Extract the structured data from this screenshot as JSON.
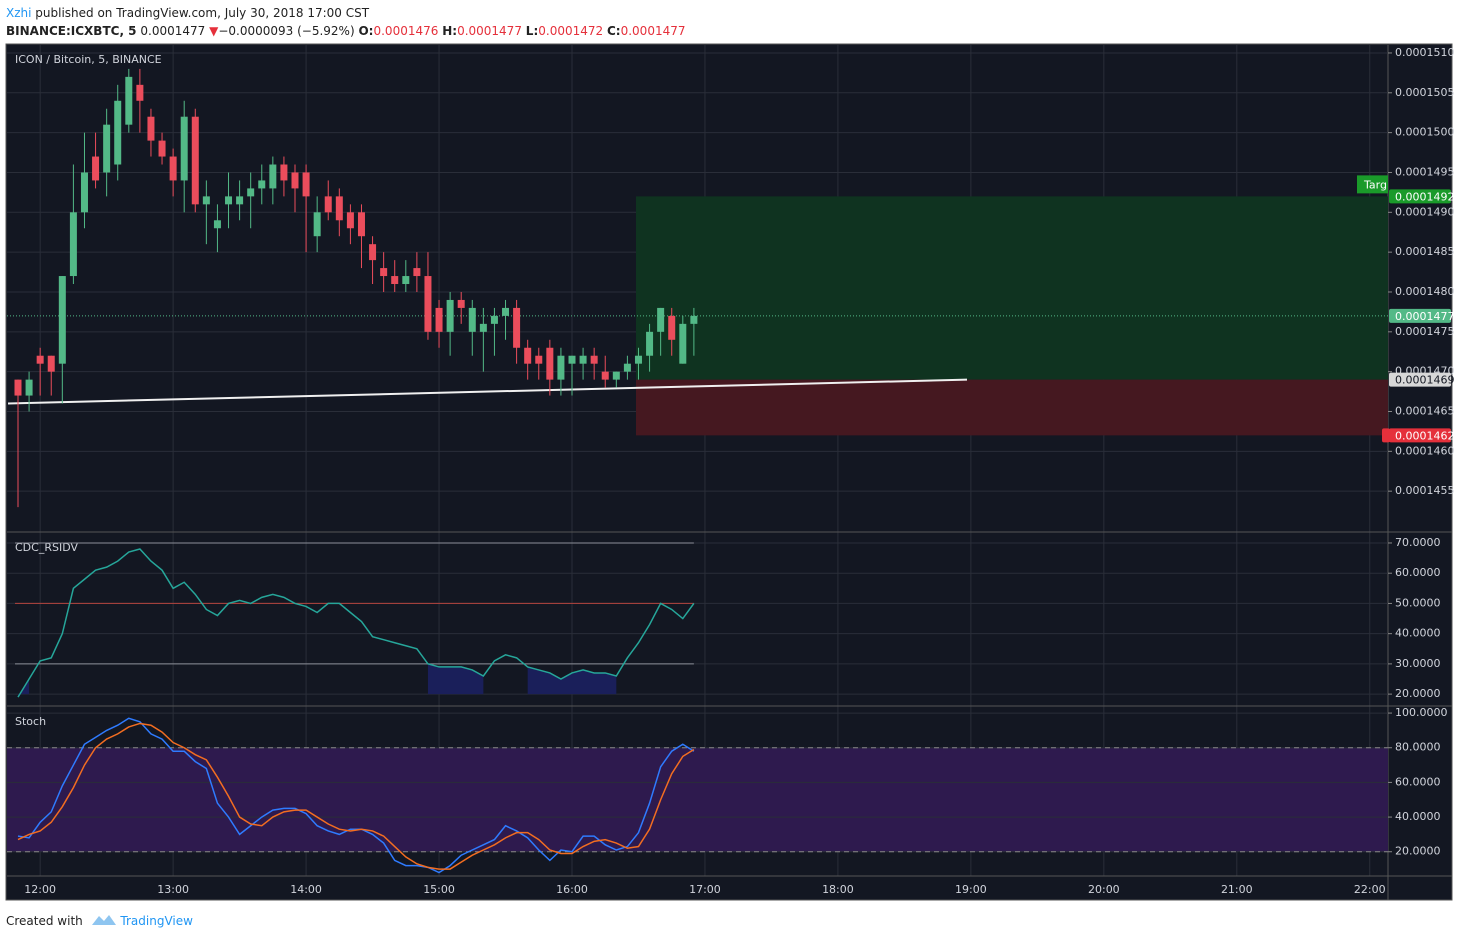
{
  "header": {
    "user": "Xzhi",
    "published": " published on TradingView.com, July 30, 2018 17:00 CST",
    "symbol": "BINANCE:ICXBTC, 5",
    "price": "0.0001477",
    "arrow": "▼",
    "change": "−0.0000093 (−5.92%)",
    "ohlc": [
      {
        "label": "O:",
        "value": "0.0001476"
      },
      {
        "label": "H:",
        "value": "0.0001477"
      },
      {
        "label": "L:",
        "value": "0.0001472"
      },
      {
        "label": "C:",
        "value": "0.0001477"
      }
    ]
  },
  "footer": {
    "created": "Created with",
    "brand": "TradingView"
  },
  "xticks": [
    "12:00",
    "13:00",
    "14:00",
    "15:00",
    "16:00",
    "17:00",
    "18:00",
    "19:00",
    "20:00",
    "21:00",
    "22:00"
  ],
  "chart_data": [
    {
      "type": "candlestick",
      "title": "ICON / Bitcoin, 5, BINANCE",
      "up_color": "#53b987",
      "down_color": "#eb4d5c",
      "grid": true,
      "open": [
        0.0001469,
        0.0001467,
        0.0001472,
        0.0001472,
        0.0001471,
        0.0001482,
        0.000149,
        0.0001497,
        0.0001495,
        0.0001496,
        0.0001501,
        0.0001506,
        0.0001502,
        0.0001499,
        0.0001497,
        0.0001494,
        0.0001502,
        0.0001491,
        0.0001488,
        0.0001491,
        0.0001491,
        0.0001492,
        0.0001493,
        0.0001493,
        0.0001496,
        0.0001495,
        0.0001495,
        0.0001487,
        0.0001492,
        0.0001492,
        0.000149,
        0.000149,
        0.0001486,
        0.0001483,
        0.0001482,
        0.0001481,
        0.0001483,
        0.0001482,
        0.0001478,
        0.0001475,
        0.0001479,
        0.0001475,
        0.0001475,
        0.0001476,
        0.0001477,
        0.0001478,
        0.0001473,
        0.0001472,
        0.0001473,
        0.0001469,
        0.0001471,
        0.0001471,
        0.0001472,
        0.000147,
        0.0001469,
        0.000147,
        0.0001471,
        0.0001472,
        0.0001475,
        0.0001477,
        0.0001471,
        0.0001476
      ],
      "high": [
        0.0001469,
        0.000147,
        0.0001473,
        0.0001472,
        0.0001482,
        0.0001496,
        0.00015,
        0.00015,
        0.0001503,
        0.0001506,
        0.0001508,
        0.0001508,
        0.0001503,
        0.00015,
        0.0001498,
        0.0001504,
        0.0001503,
        0.0001494,
        0.0001491,
        0.0001495,
        0.0001494,
        0.0001495,
        0.0001496,
        0.0001497,
        0.0001497,
        0.0001496,
        0.0001496,
        0.0001492,
        0.0001494,
        0.0001493,
        0.0001491,
        0.0001491,
        0.0001487,
        0.0001485,
        0.0001484,
        0.0001484,
        0.0001485,
        0.0001485,
        0.0001479,
        0.000148,
        0.000148,
        0.0001479,
        0.0001478,
        0.0001478,
        0.0001479,
        0.0001479,
        0.0001474,
        0.0001473,
        0.0001474,
        0.0001473,
        0.0001472,
        0.0001473,
        0.0001473,
        0.0001472,
        0.000147,
        0.0001472,
        0.0001473,
        0.0001476,
        0.0001478,
        0.0001478,
        0.0001477,
        0.0001478
      ],
      "low": [
        0.0001453,
        0.0001465,
        0.0001467,
        0.0001467,
        0.0001466,
        0.0001481,
        0.0001488,
        0.0001493,
        0.0001492,
        0.0001494,
        0.00015,
        0.00015,
        0.0001497,
        0.0001496,
        0.0001492,
        0.000149,
        0.000149,
        0.0001486,
        0.0001485,
        0.0001488,
        0.0001489,
        0.0001488,
        0.0001491,
        0.0001491,
        0.0001492,
        0.000149,
        0.0001485,
        0.0001485,
        0.0001489,
        0.0001487,
        0.0001486,
        0.0001483,
        0.0001481,
        0.000148,
        0.000148,
        0.000148,
        0.000148,
        0.0001474,
        0.0001473,
        0.0001472,
        0.0001476,
        0.0001472,
        0.000147,
        0.0001472,
        0.0001474,
        0.0001471,
        0.0001469,
        0.0001469,
        0.0001467,
        0.0001467,
        0.0001467,
        0.0001469,
        0.0001469,
        0.0001468,
        0.0001468,
        0.0001469,
        0.0001469,
        0.000147,
        0.0001472,
        0.0001472,
        0.0001471,
        0.0001472
      ],
      "close": [
        0.0001467,
        0.0001469,
        0.0001471,
        0.000147,
        0.0001482,
        0.000149,
        0.0001495,
        0.0001494,
        0.0001501,
        0.0001504,
        0.0001507,
        0.0001504,
        0.0001499,
        0.0001497,
        0.0001494,
        0.0001502,
        0.0001491,
        0.0001492,
        0.0001489,
        0.0001492,
        0.0001492,
        0.0001493,
        0.0001494,
        0.0001496,
        0.0001494,
        0.0001493,
        0.0001492,
        0.000149,
        0.000149,
        0.0001489,
        0.0001488,
        0.0001487,
        0.0001484,
        0.0001482,
        0.0001481,
        0.0001482,
        0.0001482,
        0.0001475,
        0.0001475,
        0.0001479,
        0.0001478,
        0.0001478,
        0.0001476,
        0.0001477,
        0.0001478,
        0.0001473,
        0.0001471,
        0.0001471,
        0.0001469,
        0.0001472,
        0.0001472,
        0.0001472,
        0.0001471,
        0.0001469,
        0.000147,
        0.0001471,
        0.0001472,
        0.0001475,
        0.0001478,
        0.0001474,
        0.0001476,
        0.0001477
      ],
      "ylim": [
        0.000145,
        0.0001511
      ],
      "yticks": [
        0.0001455,
        {
          "value": 0.000146,
          "label": "0.0001460"
        },
        0.0001465,
        {
          "value": 0.000147,
          "label": "0.0001470"
        },
        0.0001475,
        {
          "value": 0.000148,
          "label": "0.0001480"
        },
        0.0001485,
        {
          "value": 0.000149,
          "label": "0.0001490"
        },
        0.0001495,
        {
          "value": 0.00015,
          "label": "0.0001500"
        },
        0.0001505,
        {
          "value": 0.000151,
          "label": "0.0001510"
        }
      ],
      "last_price": 0.0001477,
      "last_color": "#53b987",
      "position": {
        "label": "Targ",
        "target": 0.0001492,
        "entry": 0.0001469,
        "stop": 0.0001462,
        "profit_color": "#0f3320",
        "loss_color": "#451820"
      },
      "trendline": [
        0.0001466,
        0.0001469
      ]
    },
    {
      "type": "line",
      "title": "CDC_RSIDV",
      "series": [
        {
          "color": "#26a69a",
          "values": [
            19,
            25,
            31,
            32,
            40,
            55,
            58,
            61,
            62,
            64,
            67,
            68,
            64,
            61,
            55,
            57,
            53,
            48,
            46,
            50,
            51,
            50,
            52,
            53,
            52,
            50,
            49,
            47,
            50,
            50,
            47,
            44,
            39,
            38,
            37,
            36,
            35,
            30,
            29,
            29,
            29,
            28,
            26,
            31,
            33,
            32,
            29,
            28,
            27,
            25,
            27,
            28,
            27,
            27,
            26,
            32,
            37,
            43,
            50,
            48,
            45,
            50
          ]
        }
      ],
      "levels": [
        {
          "value": 70,
          "color": "#8c8f99"
        },
        {
          "value": 50,
          "color": "#b5453e"
        },
        {
          "value": 30,
          "color": "#8c8f99"
        }
      ],
      "fill_color": "#1a1f5a",
      "ylim": [
        16.4,
        73.3
      ],
      "yticks": [
        {
          "value": 20,
          "label": "20.0000"
        },
        {
          "value": 30,
          "label": "30.0000"
        },
        {
          "value": 40,
          "label": "40.0000"
        },
        {
          "value": 50,
          "label": "50.0000"
        },
        {
          "value": 60,
          "label": "60.0000"
        },
        {
          "value": 70,
          "label": "70.0000"
        }
      ]
    },
    {
      "type": "line",
      "title": "Stoch",
      "series": [
        {
          "color": "#2f7bff",
          "values": [
            29,
            28,
            37,
            43,
            58,
            70,
            82,
            86,
            90,
            93,
            97,
            95,
            88,
            85,
            78,
            78,
            72,
            68,
            48,
            40,
            30,
            35,
            40,
            44,
            45,
            45,
            42,
            35,
            32,
            30,
            33,
            33,
            30,
            25,
            15,
            12,
            12,
            11,
            8,
            12,
            18,
            21,
            24,
            27,
            35,
            32,
            28,
            21,
            15,
            21,
            20,
            29,
            29,
            24,
            21,
            23,
            31,
            48,
            69,
            78,
            82,
            78
          ]
        },
        {
          "color": "#f26d21",
          "values": [
            27,
            30,
            32,
            37,
            46,
            57,
            70,
            80,
            85,
            88,
            92,
            94,
            93,
            89,
            83,
            80,
            76,
            73,
            63,
            52,
            40,
            36,
            35,
            40,
            43,
            44,
            44,
            40,
            36,
            33,
            32,
            33,
            32,
            29,
            23,
            17,
            13,
            11,
            10,
            10,
            14,
            18,
            21,
            24,
            28,
            31,
            31,
            27,
            21,
            19,
            19,
            23,
            26,
            27,
            25,
            22,
            23,
            33,
            50,
            65,
            75,
            79
          ]
        }
      ],
      "band": [
        20,
        80
      ],
      "band_color": "#2e1a4e",
      "ylim": [
        6,
        103.5
      ],
      "yticks": [
        {
          "value": 20,
          "label": "20.0000"
        },
        {
          "value": 40,
          "label": "40.0000"
        },
        {
          "value": 60,
          "label": "60.0000"
        },
        {
          "value": 80,
          "label": "80.0000"
        },
        {
          "value": 100,
          "label": "100.0000"
        }
      ]
    }
  ]
}
